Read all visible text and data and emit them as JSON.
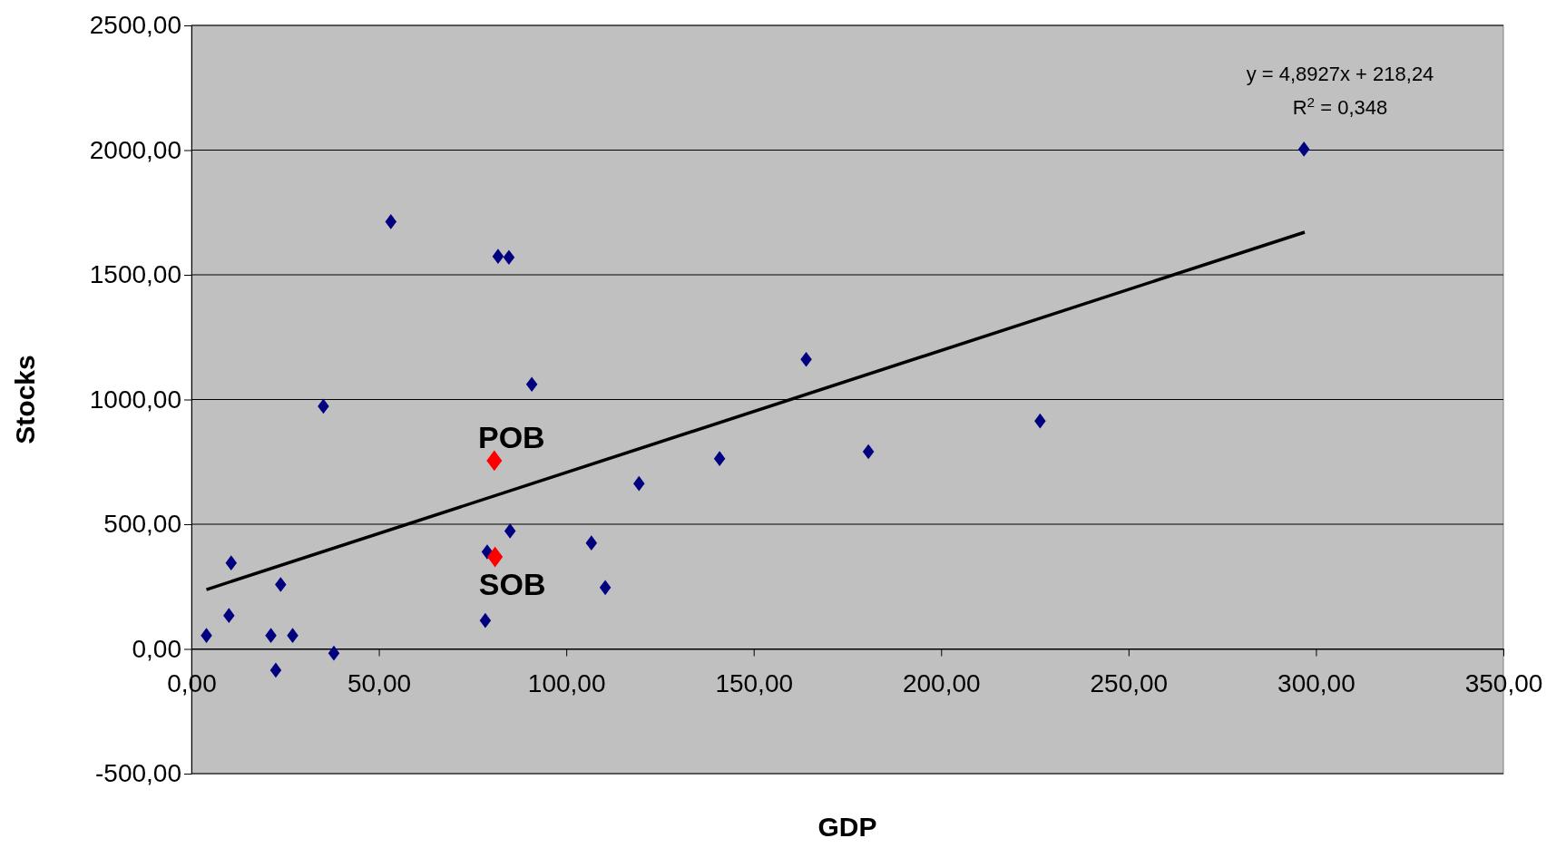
{
  "chart_data": {
    "type": "scatter",
    "xlabel": "GDP",
    "ylabel": "Stocks",
    "xlim": [
      0,
      350
    ],
    "ylim": [
      -500,
      2500
    ],
    "xticks": [
      {
        "value": 0,
        "label": "0,00"
      },
      {
        "value": 50,
        "label": "50,00"
      },
      {
        "value": 100,
        "label": "100,00"
      },
      {
        "value": 150,
        "label": "150,00"
      },
      {
        "value": 200,
        "label": "200,00"
      },
      {
        "value": 250,
        "label": "250,00"
      },
      {
        "value": 300,
        "label": "300,00"
      },
      {
        "value": 350,
        "label": "350,00"
      }
    ],
    "yticks": [
      {
        "value": -500,
        "label": "-500,00"
      },
      {
        "value": 0,
        "label": "0,00"
      },
      {
        "value": 500,
        "label": "500,00"
      },
      {
        "value": 1000,
        "label": "1000,00"
      },
      {
        "value": 1500,
        "label": "1500,00"
      },
      {
        "value": 2000,
        "label": "2000,00"
      },
      {
        "value": 2500,
        "label": "2500,00"
      }
    ],
    "grid": "y",
    "legend": false,
    "marker": "diamond",
    "series": [
      {
        "color": "#000080",
        "x": [
          4,
          10.6,
          10,
          23.8,
          21.2,
          22.5,
          27,
          35.2,
          38,
          53.2,
          78.4,
          78.9,
          81.8,
          84.7,
          85,
          90.8,
          106.7,
          110.4,
          119.4,
          140.9,
          164,
          180.6,
          226.4,
          296.8
        ],
        "values": [
          54,
          345,
          134,
          258,
          54,
          -85,
          54,
          973,
          -17,
          1713,
          114,
          389,
          1574,
          1570,
          473,
          1061,
          425,
          246,
          663,
          763,
          1161,
          791,
          914,
          2004
        ]
      },
      {
        "name": "POB",
        "color": "#ff0000",
        "x": [
          80.8
        ],
        "values": [
          755
        ]
      },
      {
        "name": "SOB",
        "color": "#ff0000",
        "x": [
          81
        ],
        "values": [
          369
        ]
      },
      {
        "type": "line",
        "color": "#000000",
        "x": [
          4,
          297
        ],
        "values": [
          238,
          1671
        ],
        "marker": "none",
        "line_style": "solid"
      }
    ],
    "annotations": [
      "y = 4,8927x + 218,24",
      "R$^{2}$ = 0,348"
    ]
  }
}
